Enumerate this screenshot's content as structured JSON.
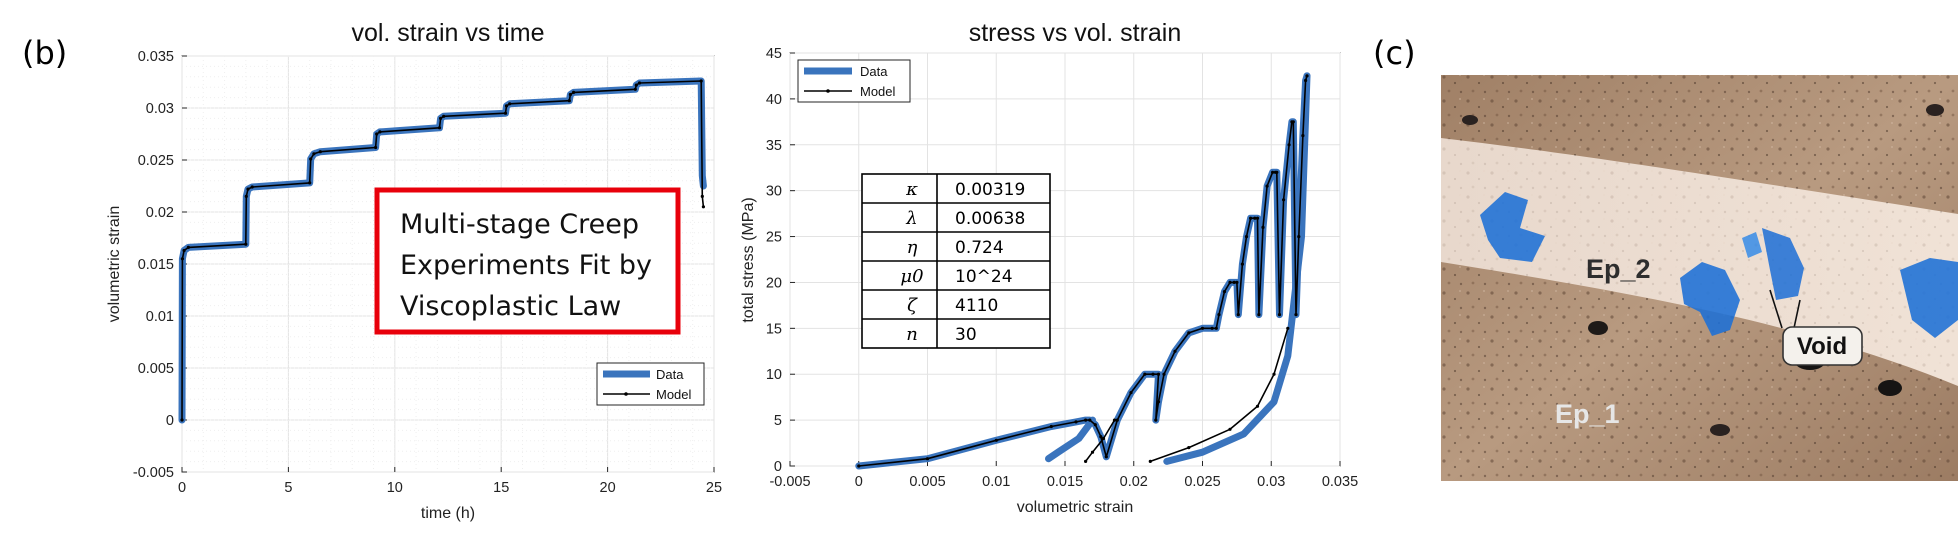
{
  "panels": {
    "b": "(b)",
    "c": "(c)"
  },
  "annotation_box": {
    "lines": [
      "Multi-stage Creep",
      "Experiments Fit by",
      "Viscoplastic Law"
    ],
    "border_color": "#e8000b"
  },
  "params": {
    "rows": [
      {
        "symbol": "κ",
        "value": "0.00319"
      },
      {
        "symbol": "λ",
        "value": "0.00638"
      },
      {
        "symbol": "η",
        "value": "0.724"
      },
      {
        "symbol": "μ0",
        "value": "10^24"
      },
      {
        "symbol": "ζ",
        "value": "4110"
      },
      {
        "symbol": "n",
        "value": "30"
      }
    ]
  },
  "photo": {
    "labels": {
      "ep2": "Ep_2",
      "void": "Void",
      "ep1": "Ep_1"
    }
  },
  "colors": {
    "data": "#3a74bd",
    "model": "#000000",
    "void": "#1c6fd6"
  },
  "chart_data": [
    {
      "type": "line",
      "title": "vol. strain vs time",
      "xlabel": "time (h)",
      "ylabel": "volumetric strain",
      "xlim": [
        0,
        25
      ],
      "ylim": [
        -0.005,
        0.035
      ],
      "xticks": [
        "0",
        "5",
        "10",
        "15",
        "20",
        "25"
      ],
      "yticks": [
        "-0.005",
        "0",
        "0.005",
        "0.01",
        "0.015",
        "0.02",
        "0.025",
        "0.03",
        "0.035"
      ],
      "grid": true,
      "legend": {
        "position": "bottom-right",
        "entries": [
          "Data",
          "Model"
        ]
      },
      "series": [
        {
          "name": "Data",
          "color": "#3a74bd",
          "x": [
            0,
            0.02,
            0.1,
            0.3,
            3.0,
            3.02,
            3.1,
            3.3,
            6.0,
            6.05,
            6.2,
            6.5,
            9.1,
            9.15,
            9.3,
            12.1,
            12.15,
            12.3,
            15.2,
            15.25,
            15.4,
            18.2,
            18.25,
            18.4,
            21.3,
            21.35,
            21.5,
            24.4,
            24.45,
            24.5
          ],
          "y": [
            0,
            0.0155,
            0.0163,
            0.0166,
            0.0169,
            0.0215,
            0.0222,
            0.0224,
            0.0228,
            0.0251,
            0.0256,
            0.0258,
            0.0262,
            0.0275,
            0.0277,
            0.0281,
            0.029,
            0.0292,
            0.0295,
            0.0302,
            0.0304,
            0.0307,
            0.0313,
            0.0315,
            0.0318,
            0.0322,
            0.0324,
            0.0326,
            0.0235,
            0.0225
          ]
        },
        {
          "name": "Model",
          "color": "#000000",
          "x": [
            0,
            0.02,
            0.1,
            0.3,
            3.0,
            3.02,
            3.1,
            3.3,
            6.0,
            6.05,
            6.2,
            6.5,
            9.1,
            9.15,
            9.3,
            12.1,
            12.15,
            12.3,
            15.2,
            15.25,
            15.4,
            18.2,
            18.25,
            18.4,
            21.3,
            21.35,
            21.5,
            24.4,
            24.45,
            24.5
          ],
          "y": [
            0,
            0.0155,
            0.0163,
            0.0166,
            0.0169,
            0.0215,
            0.0222,
            0.0224,
            0.0228,
            0.0251,
            0.0256,
            0.0258,
            0.0262,
            0.0275,
            0.0277,
            0.0281,
            0.029,
            0.0292,
            0.0295,
            0.0302,
            0.0304,
            0.0307,
            0.0313,
            0.0315,
            0.0318,
            0.0322,
            0.0324,
            0.0326,
            0.0215,
            0.0205
          ]
        }
      ]
    },
    {
      "type": "line",
      "title": "stress vs vol. strain",
      "xlabel": "volumetric strain",
      "ylabel": "total stress (MPa)",
      "xlim": [
        -0.005,
        0.035
      ],
      "ylim": [
        0,
        45
      ],
      "xticks": [
        "-0.005",
        "0",
        "0.005",
        "0.01",
        "0.015",
        "0.02",
        "0.025",
        "0.03",
        "0.035"
      ],
      "yticks": [
        "0",
        "5",
        "10",
        "15",
        "20",
        "25",
        "30",
        "35",
        "40",
        "45"
      ],
      "grid": true,
      "legend": {
        "position": "top-left",
        "entries": [
          "Data",
          "Model"
        ]
      },
      "series": [
        {
          "name": "Data",
          "color": "#3a74bd",
          "x": [
            0,
            0.005,
            0.01,
            0.014,
            0.0158,
            0.0165,
            0.0168,
            0.0172,
            0.0176,
            0.018,
            0.0188,
            0.0198,
            0.0208,
            0.0214,
            0.0218,
            0.0216,
            0.0218,
            0.0222,
            0.023,
            0.024,
            0.025,
            0.0257,
            0.026,
            0.0262,
            0.0266,
            0.027,
            0.0273,
            0.0275,
            0.0276,
            0.0279,
            0.0282,
            0.0285,
            0.0288,
            0.029,
            0.0291,
            0.0294,
            0.0297,
            0.0301,
            0.0303,
            0.0304,
            0.0306,
            0.0309,
            0.0313,
            0.0315,
            0.0316,
            0.0318,
            0.032,
            0.0323,
            0.0325,
            0.0326
          ],
          "y": [
            0,
            0.8,
            2.8,
            4.3,
            4.8,
            5.0,
            5.0,
            4.5,
            3.2,
            1.0,
            5.0,
            8.0,
            10.0,
            10.0,
            10.0,
            5.0,
            7.0,
            10.0,
            12.5,
            14.5,
            15.0,
            15.0,
            15.0,
            16.5,
            19.0,
            20.0,
            20.0,
            20.0,
            16.5,
            22.0,
            25.0,
            27.0,
            27.0,
            27.0,
            16.5,
            26.0,
            30.5,
            32.0,
            32.0,
            32.0,
            16.5,
            29.0,
            35.0,
            37.5,
            37.5,
            16.5,
            25.0,
            36.0,
            42.0,
            42.5
          ]
        },
        {
          "name": "Model",
          "color": "#000000",
          "x": [
            0,
            0.005,
            0.01,
            0.014,
            0.0158,
            0.0165,
            0.0168,
            0.0172,
            0.0176,
            0.018,
            0.0188,
            0.0198,
            0.0208,
            0.0214,
            0.0218,
            0.0216,
            0.0218,
            0.0222,
            0.023,
            0.024,
            0.025,
            0.0257,
            0.026,
            0.0262,
            0.0266,
            0.027,
            0.0273,
            0.0275,
            0.0276,
            0.0279,
            0.0282,
            0.0285,
            0.0288,
            0.029,
            0.0291,
            0.0294,
            0.0297,
            0.0301,
            0.0303,
            0.0304,
            0.0306,
            0.0309,
            0.0313,
            0.0315,
            0.0316,
            0.0318,
            0.032,
            0.0323,
            0.0325,
            0.0326
          ],
          "y": [
            0,
            0.8,
            2.8,
            4.3,
            4.8,
            5.0,
            5.0,
            4.5,
            3.2,
            1.0,
            5.0,
            8.0,
            10.0,
            10.0,
            10.0,
            5.0,
            7.0,
            10.0,
            12.5,
            14.5,
            15.0,
            15.0,
            15.0,
            16.5,
            19.0,
            20.0,
            20.0,
            20.0,
            16.5,
            22.0,
            25.0,
            27.0,
            27.0,
            27.0,
            16.5,
            26.0,
            30.5,
            32.0,
            32.0,
            32.0,
            16.5,
            29.0,
            35.0,
            37.5,
            37.5,
            16.5,
            25.0,
            36.0,
            42.0,
            42.5
          ]
        }
      ],
      "extra_series": [
        {
          "name": "Data unloading",
          "color": "#3a74bd",
          "x": [
            0.0138,
            0.0145,
            0.016,
            0.017
          ],
          "y": [
            0.8,
            1.5,
            3.0,
            5.0
          ]
        },
        {
          "name": "Data final unloading",
          "color": "#3a74bd",
          "x": [
            0.0224,
            0.025,
            0.028,
            0.0302,
            0.0312,
            0.0322,
            0.0326
          ],
          "y": [
            0.5,
            1.5,
            3.5,
            7.0,
            12.0,
            25.0,
            42.5
          ]
        },
        {
          "name": "Model final unloading",
          "color": "#000000",
          "x": [
            0.0212,
            0.024,
            0.027,
            0.029,
            0.0302,
            0.0312
          ],
          "y": [
            0.5,
            2.0,
            4.0,
            6.5,
            10.0,
            15.0
          ]
        },
        {
          "name": "Model unloading",
          "color": "#000000",
          "x": [
            0.0165,
            0.017,
            0.0178,
            0.0186
          ],
          "y": [
            0.5,
            1.5,
            3.0,
            5.0
          ]
        }
      ]
    }
  ]
}
